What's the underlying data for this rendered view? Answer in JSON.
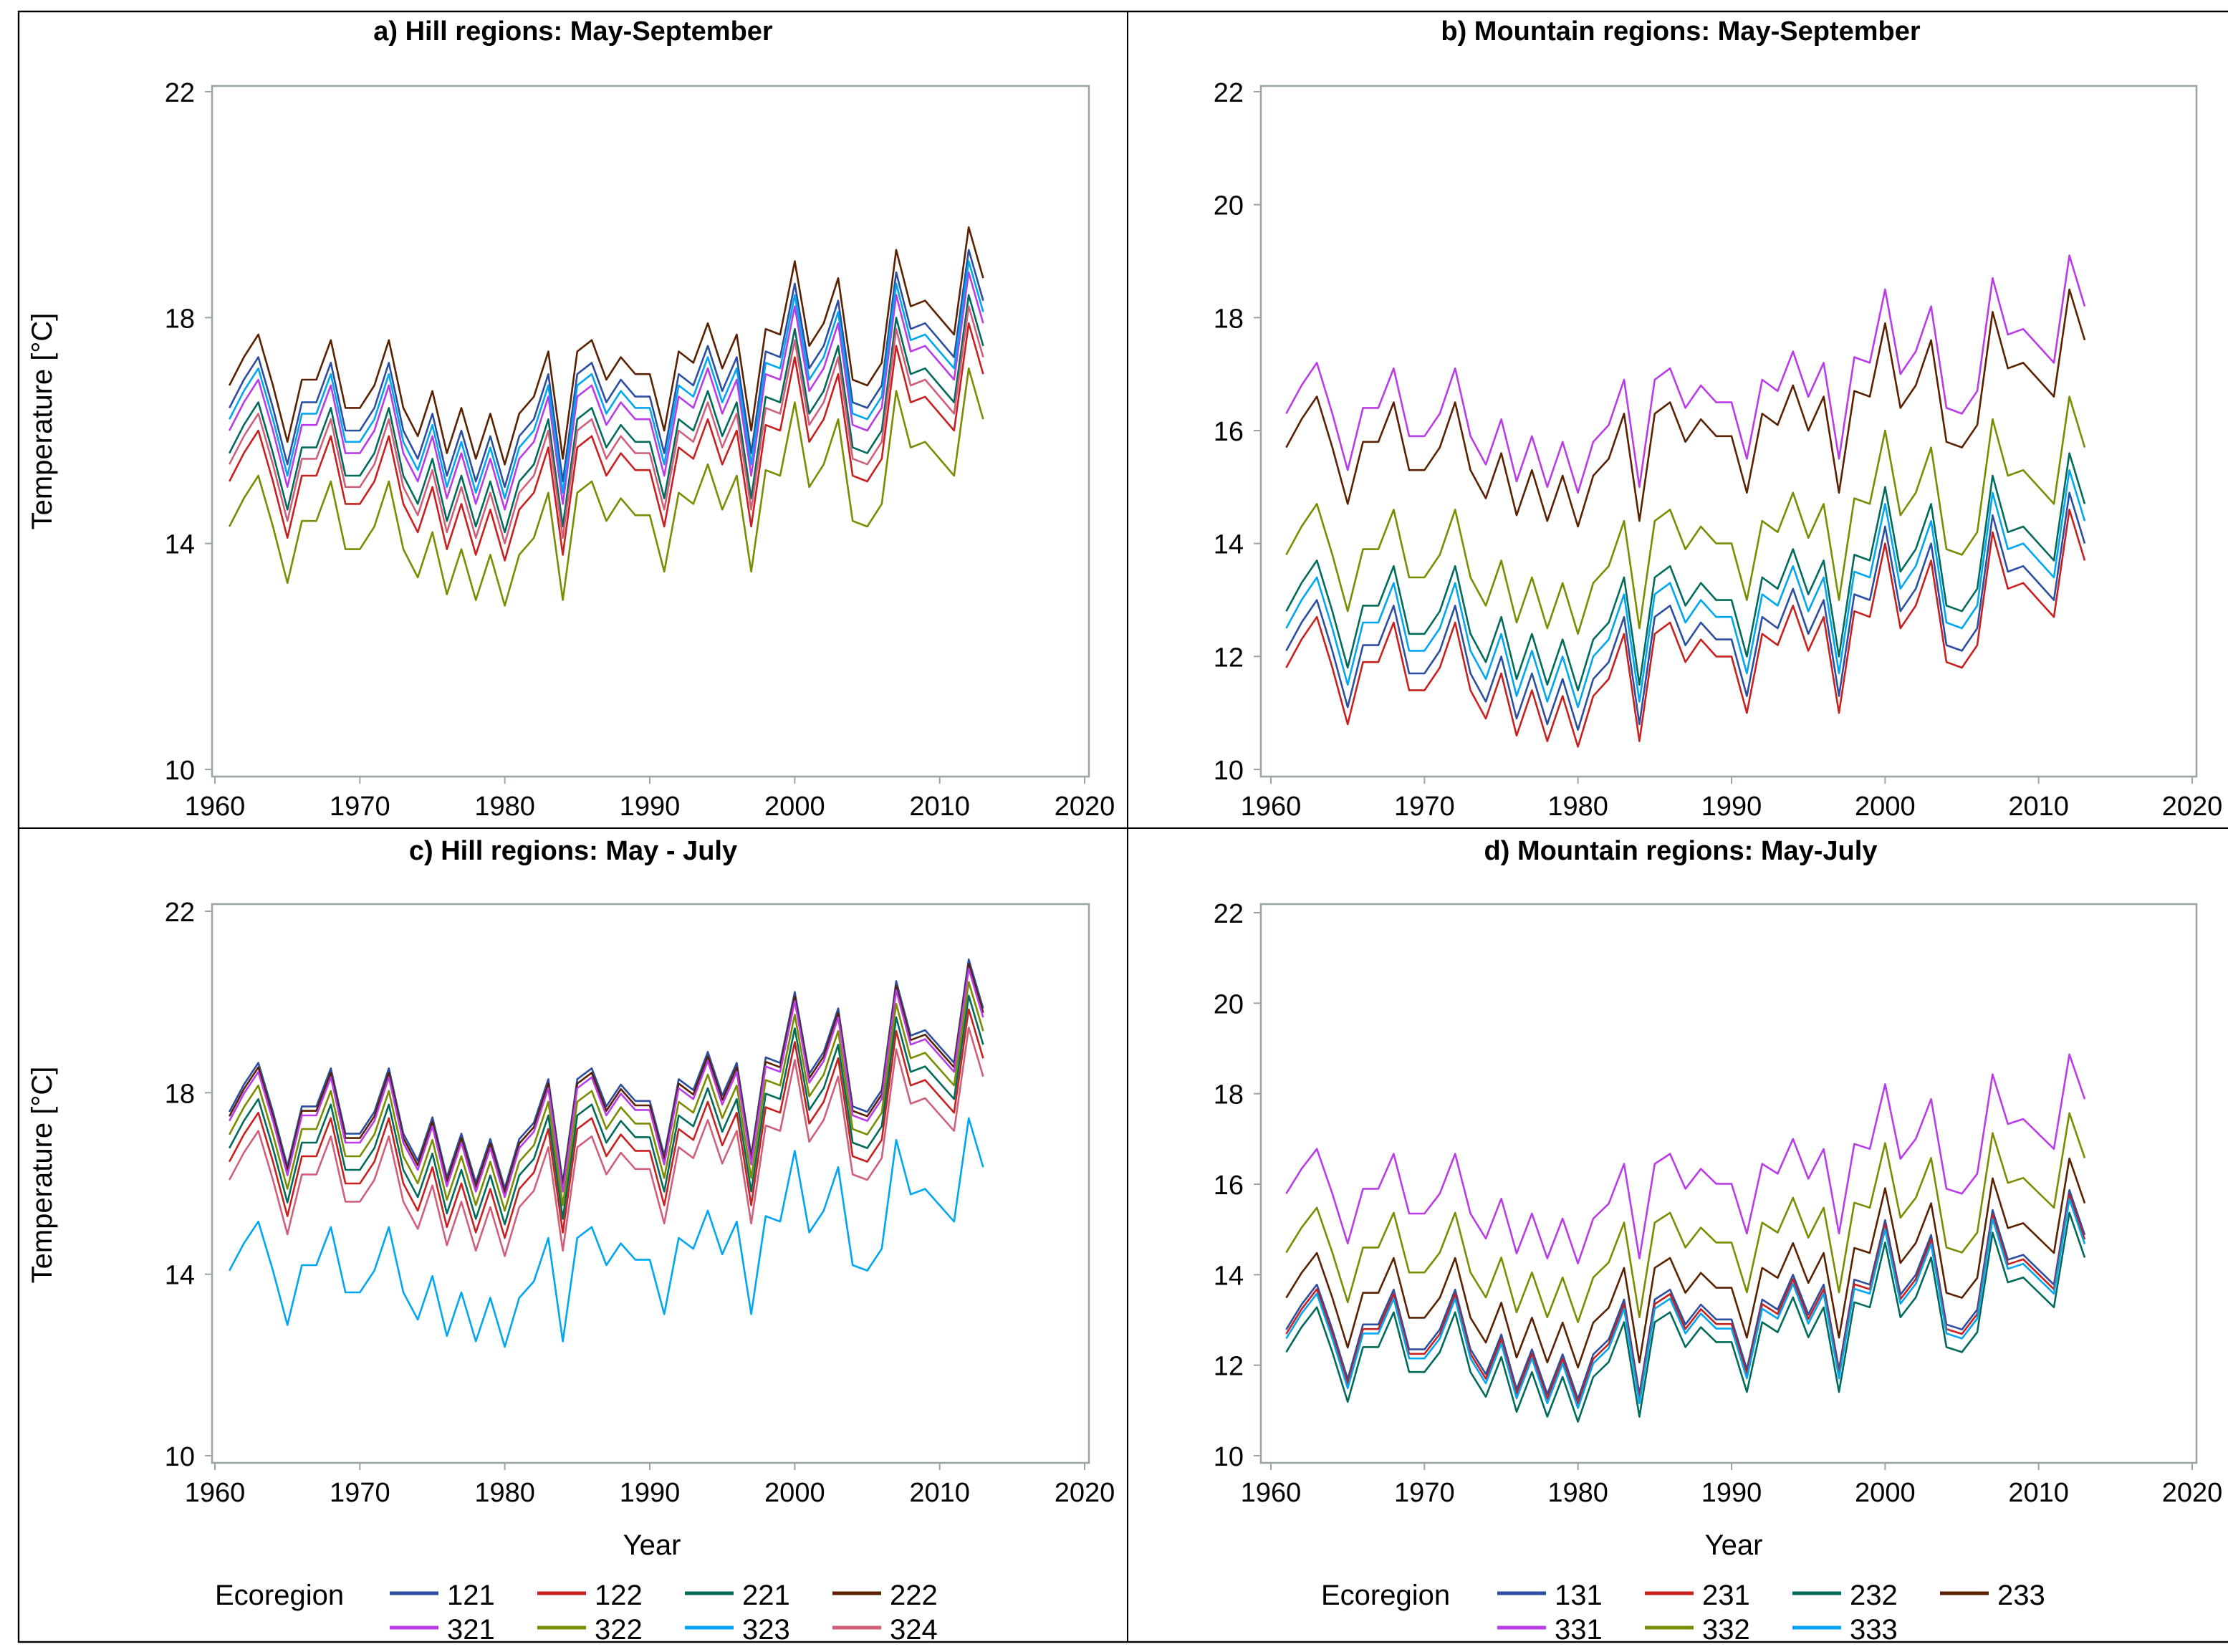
{
  "note_on_values": "Series values are reconstructed as mean + anomaly[year] * scale, estimated from the plotted lines",
  "chart_data": {
    "type": "line",
    "years_range": [
      1961,
      2013
    ],
    "anomaly": [
      -0.1,
      0.4,
      0.8,
      -0.1,
      -1.1,
      0.0,
      0.0,
      0.7,
      -0.5,
      -0.5,
      -0.1,
      0.7,
      -0.5,
      -1.0,
      -0.2,
      -1.3,
      -0.5,
      -1.4,
      -0.6,
      -1.5,
      -0.6,
      -0.3,
      0.5,
      -1.4,
      0.5,
      0.7,
      0.0,
      0.4,
      0.1,
      0.1,
      -0.9,
      0.5,
      0.3,
      1.0,
      0.2,
      0.8,
      -0.9,
      0.9,
      0.8,
      2.1,
      0.6,
      1.0,
      1.8,
      0.0,
      -0.1,
      0.3,
      2.3,
      1.3,
      1.4,
      1.1,
      0.8,
      2.7,
      1.8
    ],
    "panels": [
      {
        "id": "a",
        "title": "a) Hill regions: May-September",
        "xlabel": "",
        "ylabel": "Temperature [°C]",
        "xlim": [
          1960,
          2020
        ],
        "ylim": [
          10,
          22
        ],
        "xticks": [
          "1960",
          "1970",
          "1980",
          "1990",
          "2000",
          "2010",
          "2020"
        ],
        "yticks": [
          "10",
          "14",
          "18",
          "22"
        ],
        "scale": 1.0,
        "series": [
          {
            "name": "121",
            "color": "#2b4ea0",
            "mean": 16.5
          },
          {
            "name": "122",
            "color": "#c8201e",
            "mean": 15.2
          },
          {
            "name": "221",
            "color": "#006a5b",
            "mean": 15.7
          },
          {
            "name": "222",
            "color": "#5a2100",
            "mean": 16.9
          },
          {
            "name": "321",
            "color": "#b93ce8",
            "mean": 16.1
          },
          {
            "name": "322",
            "color": "#7a8c00",
            "mean": 14.4
          },
          {
            "name": "323",
            "color": "#00a6f2",
            "mean": 16.3
          },
          {
            "name": "324",
            "color": "#d0607a",
            "mean": 15.5
          }
        ]
      },
      {
        "id": "b",
        "title": "b) Mountain regions: May-September",
        "xlabel": "",
        "ylabel": "",
        "xlim": [
          1960,
          2020
        ],
        "ylim": [
          10,
          22
        ],
        "xticks": [
          "1960",
          "1970",
          "1980",
          "1990",
          "2000",
          "2010",
          "2020"
        ],
        "yticks": [
          "10",
          "12",
          "14",
          "16",
          "18",
          "20",
          "22"
        ],
        "scale": 1.0,
        "series": [
          {
            "name": "131",
            "color": "#2b4ea0",
            "mean": 12.2
          },
          {
            "name": "231",
            "color": "#c8201e",
            "mean": 11.9
          },
          {
            "name": "232",
            "color": "#006a5b",
            "mean": 12.9
          },
          {
            "name": "233",
            "color": "#5a2100",
            "mean": 15.8
          },
          {
            "name": "331",
            "color": "#b93ce8",
            "mean": 16.4
          },
          {
            "name": "332",
            "color": "#7a8c00",
            "mean": 13.9
          },
          {
            "name": "333",
            "color": "#00a6f2",
            "mean": 12.6
          }
        ]
      },
      {
        "id": "c",
        "title": "c) Hill regions: May - July",
        "xlabel": "Year",
        "ylabel": "Temperature [°C]",
        "xlim": [
          1960,
          2020
        ],
        "ylim": [
          10,
          22
        ],
        "xticks": [
          "1960",
          "1970",
          "1980",
          "1990",
          "2000",
          "2010",
          "2020"
        ],
        "yticks": [
          "10",
          "14",
          "18",
          "22"
        ],
        "scale": 1.2,
        "series": [
          {
            "name": "121",
            "color": "#2b4ea0",
            "mean": 17.7
          },
          {
            "name": "122",
            "color": "#c8201e",
            "mean": 16.6
          },
          {
            "name": "221",
            "color": "#006a5b",
            "mean": 16.9
          },
          {
            "name": "222",
            "color": "#5a2100",
            "mean": 17.6
          },
          {
            "name": "321",
            "color": "#b93ce8",
            "mean": 17.5
          },
          {
            "name": "322",
            "color": "#7a8c00",
            "mean": 17.2
          },
          {
            "name": "323",
            "color": "#00a6f2",
            "mean": 14.2
          },
          {
            "name": "324",
            "color": "#d0607a",
            "mean": 16.2
          }
        ]
      },
      {
        "id": "d",
        "title": "d) Mountain regions: May-July",
        "xlabel": "Year",
        "ylabel": "",
        "xlim": [
          1960,
          2020
        ],
        "ylim": [
          10,
          22
        ],
        "xticks": [
          "1960",
          "1970",
          "1980",
          "1990",
          "2000",
          "2010",
          "2020"
        ],
        "yticks": [
          "10",
          "12",
          "14",
          "16",
          "18",
          "20",
          "22"
        ],
        "scale": 1.1,
        "series": [
          {
            "name": "131",
            "color": "#2b4ea0",
            "mean": 12.9
          },
          {
            "name": "231",
            "color": "#c8201e",
            "mean": 12.8
          },
          {
            "name": "232",
            "color": "#006a5b",
            "mean": 12.4
          },
          {
            "name": "233",
            "color": "#5a2100",
            "mean": 13.6
          },
          {
            "name": "331",
            "color": "#b93ce8",
            "mean": 15.9
          },
          {
            "name": "332",
            "color": "#7a8c00",
            "mean": 14.6
          },
          {
            "name": "333",
            "color": "#00a6f2",
            "mean": 12.7
          }
        ]
      }
    ],
    "legend_title": "Ecoregion",
    "legend_placement": "bottom",
    "grid": false
  }
}
